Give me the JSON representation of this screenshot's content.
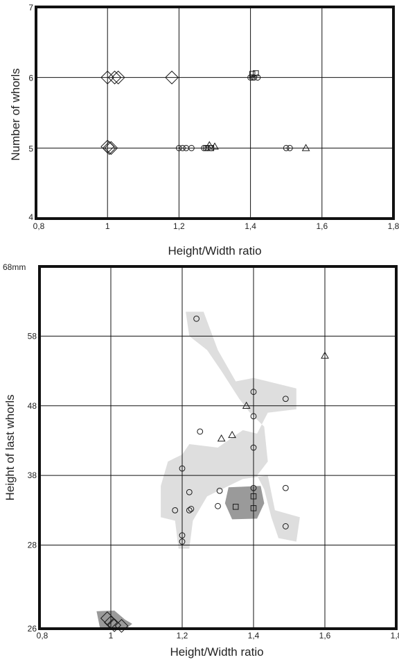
{
  "chart_data": [
    {
      "type": "scatter",
      "xlabel": "Height/Width ratio",
      "ylabel": "Number of whorls",
      "xlim": [
        0.8,
        1.8
      ],
      "ylim": [
        4,
        7
      ],
      "xticks": [
        "0,8",
        "1",
        "1,2",
        "1,4",
        "1,6",
        "1,8"
      ],
      "yticks": [
        "4",
        "5",
        "6",
        "7"
      ],
      "grid": true,
      "series": [
        {
          "marker": "diamond",
          "points": [
            [
              1.0,
              6
            ],
            [
              1.02,
              6
            ],
            [
              1.03,
              6
            ],
            [
              1.18,
              6
            ],
            [
              1.0,
              5.02
            ],
            [
              1.005,
              5
            ],
            [
              1.01,
              5
            ]
          ]
        },
        {
          "marker": "circle",
          "points": [
            [
              1.2,
              5
            ],
            [
              1.21,
              5
            ],
            [
              1.22,
              5
            ],
            [
              1.235,
              5
            ],
            [
              1.27,
              5
            ],
            [
              1.275,
              5
            ],
            [
              1.28,
              5
            ],
            [
              1.29,
              5
            ],
            [
              1.4,
              6
            ],
            [
              1.405,
              6
            ],
            [
              1.41,
              6
            ],
            [
              1.42,
              6
            ],
            [
              1.5,
              5
            ],
            [
              1.51,
              5
            ]
          ]
        },
        {
          "marker": "square",
          "points": [
            [
              1.405,
              6.05
            ],
            [
              1.415,
              6.06
            ],
            [
              1.29,
              5
            ]
          ]
        },
        {
          "marker": "triangle",
          "points": [
            [
              1.285,
              5.04
            ],
            [
              1.3,
              5.02
            ],
            [
              1.555,
              5
            ]
          ]
        }
      ]
    },
    {
      "type": "scatter",
      "xlabel": "Height/Width ratio",
      "ylabel": "Height of last whorls",
      "xlim": [
        0.8,
        1.8
      ],
      "ylim": [
        16,
        68
      ],
      "y_unit_label": "68mm",
      "xticks": [
        "0,8",
        "1",
        "1,2",
        "1,4",
        "1,6",
        "1,8"
      ],
      "yticks": [
        "26",
        "28",
        "38",
        "48",
        "58"
      ],
      "grid": true,
      "series": [
        {
          "marker": "diamond",
          "points": [
            [
              0.99,
              17.5
            ],
            [
              1.0,
              16.9
            ],
            [
              1.01,
              16.5
            ],
            [
              1.03,
              16.4
            ]
          ]
        },
        {
          "marker": "circle",
          "points": [
            [
              1.24,
              60.5
            ],
            [
              1.25,
              44.3
            ],
            [
              1.2,
              39
            ],
            [
              1.18,
              33
            ],
            [
              1.22,
              35.6
            ],
            [
              1.22,
              33
            ],
            [
              1.225,
              33.2
            ],
            [
              1.2,
              29.4
            ],
            [
              1.2,
              28.5
            ],
            [
              1.3,
              33.6
            ],
            [
              1.305,
              35.8
            ],
            [
              1.4,
              50
            ],
            [
              1.4,
              46.5
            ],
            [
              1.4,
              42
            ],
            [
              1.4,
              36.2
            ],
            [
              1.49,
              49
            ],
            [
              1.49,
              36.2
            ],
            [
              1.49,
              30.7
            ]
          ]
        },
        {
          "marker": "triangle",
          "points": [
            [
              1.31,
              43.3
            ],
            [
              1.34,
              43.8
            ],
            [
              1.38,
              48
            ],
            [
              1.6,
              55.2
            ]
          ]
        },
        {
          "marker": "square",
          "points": [
            [
              1.35,
              33.5
            ],
            [
              1.4,
              35
            ],
            [
              1.4,
              33.3
            ]
          ]
        }
      ],
      "shaded_regions": [
        {
          "shade": "light",
          "polygon": [
            [
              1.21,
              61.5
            ],
            [
              1.26,
              61.5
            ],
            [
              1.3,
              56
            ],
            [
              1.35,
              51.5
            ],
            [
              1.4,
              52
            ],
            [
              1.52,
              50.5
            ],
            [
              1.52,
              47.5
            ],
            [
              1.44,
              47
            ],
            [
              1.41,
              44
            ],
            [
              1.37,
              44.5
            ],
            [
              1.3,
              42
            ],
            [
              1.22,
              42.5
            ],
            [
              1.2,
              41
            ],
            [
              1.16,
              40
            ],
            [
              1.14,
              36.5
            ],
            [
              1.14,
              32
            ],
            [
              1.18,
              31.5
            ],
            [
              1.19,
              27.5
            ],
            [
              1.22,
              27.5
            ],
            [
              1.23,
              31.5
            ],
            [
              1.27,
              35
            ],
            [
              1.37,
              37.5
            ],
            [
              1.44,
              38
            ],
            [
              1.46,
              33
            ],
            [
              1.53,
              32
            ],
            [
              1.52,
              28.5
            ],
            [
              1.47,
              29
            ],
            [
              1.45,
              32
            ],
            [
              1.43,
              36
            ],
            [
              1.41,
              38
            ],
            [
              1.44,
              40
            ],
            [
              1.43,
              45
            ],
            [
              1.39,
              47
            ],
            [
              1.36,
              49
            ],
            [
              1.31,
              53
            ],
            [
              1.27,
              56
            ],
            [
              1.22,
              58
            ]
          ]
        },
        {
          "shade": "dark",
          "polygon": [
            [
              1.32,
              34
            ],
            [
              1.33,
              36.3
            ],
            [
              1.42,
              36.5
            ],
            [
              1.43,
              34
            ],
            [
              1.41,
              31.8
            ],
            [
              1.34,
              31.7
            ]
          ]
        },
        {
          "shade": "dark",
          "polygon": [
            [
              0.96,
              18.5
            ],
            [
              1.01,
              18.6
            ],
            [
              1.04,
              17.3
            ],
            [
              1.06,
              16.7
            ],
            [
              1.04,
              15.9
            ],
            [
              1.02,
              16
            ],
            [
              0.97,
              16
            ]
          ]
        }
      ]
    }
  ]
}
